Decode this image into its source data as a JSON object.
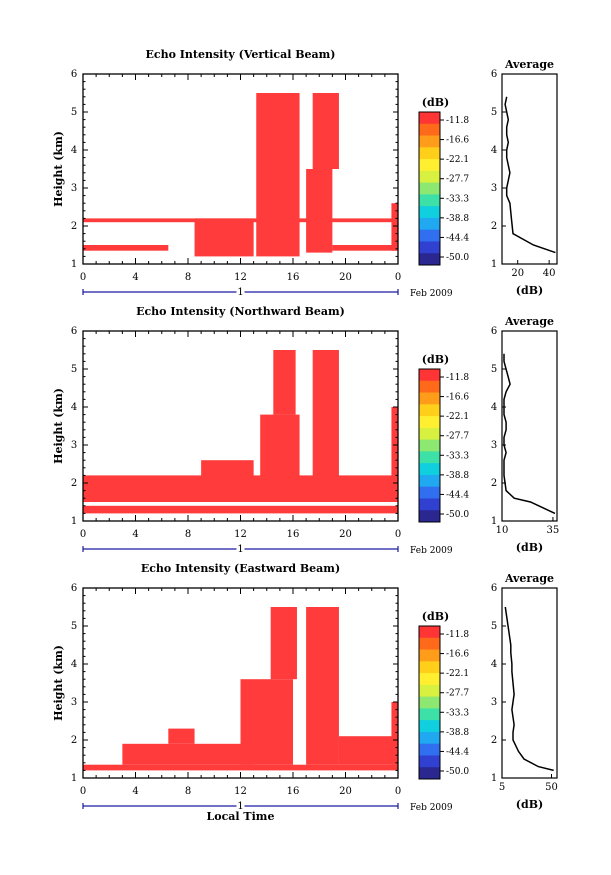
{
  "chart_data": [
    {
      "type": "heatmap",
      "title": "Echo Intensity (Vertical Beam)",
      "ylabel": "Height (km)",
      "ylim": [
        1,
        6
      ],
      "yticks": [
        "1",
        "2",
        "3",
        "4",
        "5",
        "6"
      ],
      "xlim": [
        0,
        24
      ],
      "xticks": [
        "0",
        "4",
        "8",
        "12",
        "16",
        "20",
        "0"
      ],
      "day_label": "1",
      "date_label": "Feb 2009",
      "colorbar": {
        "title": "(dB)",
        "ticks": [
          "-11.8",
          "-16.6",
          "-22.1",
          "-27.7",
          "-33.3",
          "-38.8",
          "-44.4",
          "-50.0"
        ]
      },
      "echo_segments": [
        {
          "x0": 0,
          "x1": 24,
          "y0": 2.1,
          "y1": 2.2
        },
        {
          "x0": 0,
          "x1": 6.5,
          "y0": 1.35,
          "y1": 1.5
        },
        {
          "x0": 8.5,
          "x1": 13,
          "y0": 1.2,
          "y1": 2.2
        },
        {
          "x0": 13.2,
          "x1": 16.5,
          "y0": 1.2,
          "y1": 5.5
        },
        {
          "x0": 17,
          "x1": 19,
          "y0": 1.3,
          "y1": 3.5
        },
        {
          "x0": 17.5,
          "x1": 19.5,
          "y0": 3.5,
          "y1": 5.5
        },
        {
          "x0": 19,
          "x1": 24,
          "y0": 1.35,
          "y1": 1.5
        },
        {
          "x0": 23.5,
          "x1": 24,
          "y0": 1.35,
          "y1": 2.6
        }
      ],
      "profile": {
        "title": "Average",
        "xlabel": "(dB)",
        "xlim": [
          10,
          45
        ],
        "xticks": [
          "20",
          "40"
        ],
        "x": [
          13,
          12,
          13,
          14,
          13,
          13,
          14,
          13,
          13,
          14,
          15,
          14,
          13,
          13,
          15,
          16,
          17,
          30,
          44
        ],
        "y": [
          5.4,
          5.2,
          5.0,
          4.8,
          4.6,
          4.4,
          4.2,
          4.0,
          3.8,
          3.6,
          3.4,
          3.2,
          3.0,
          2.8,
          2.6,
          2.2,
          1.8,
          1.5,
          1.3
        ]
      }
    },
    {
      "type": "heatmap",
      "title": "Echo Intensity (Northward Beam)",
      "ylabel": "Height (km)",
      "ylim": [
        1,
        6
      ],
      "yticks": [
        "1",
        "2",
        "3",
        "4",
        "5",
        "6"
      ],
      "xlim": [
        0,
        24
      ],
      "xticks": [
        "0",
        "4",
        "8",
        "12",
        "16",
        "20",
        "0"
      ],
      "day_label": "1",
      "date_label": "Feb 2009",
      "colorbar": {
        "title": "(dB)",
        "ticks": [
          "-11.8",
          "-16.6",
          "-22.1",
          "-27.7",
          "-33.3",
          "-38.8",
          "-44.4",
          "-50.0"
        ]
      },
      "echo_segments": [
        {
          "x0": 0,
          "x1": 24,
          "y0": 1.2,
          "y1": 1.4
        },
        {
          "x0": 0,
          "x1": 24,
          "y0": 1.5,
          "y1": 2.2
        },
        {
          "x0": 9,
          "x1": 13,
          "y0": 1.5,
          "y1": 2.6
        },
        {
          "x0": 13.5,
          "x1": 16.5,
          "y0": 1.5,
          "y1": 3.8
        },
        {
          "x0": 14.5,
          "x1": 16.2,
          "y0": 3.8,
          "y1": 5.5
        },
        {
          "x0": 17.5,
          "x1": 19.5,
          "y0": 1.5,
          "y1": 5.5
        },
        {
          "x0": 23.5,
          "x1": 24,
          "y0": 1.5,
          "y1": 4.0
        }
      ],
      "profile": {
        "title": "Average",
        "xlabel": "(dB)",
        "xlim": [
          10,
          37
        ],
        "xticks": [
          "10",
          "35"
        ],
        "x": [
          11,
          11,
          13,
          14,
          12,
          11,
          11,
          11,
          12,
          12,
          11,
          11,
          12,
          11,
          11,
          12,
          16,
          24,
          36
        ],
        "y": [
          5.4,
          5.2,
          4.8,
          4.6,
          4.4,
          4.2,
          4.0,
          3.8,
          3.6,
          3.4,
          3.2,
          3.0,
          2.8,
          2.6,
          2.2,
          1.8,
          1.6,
          1.5,
          1.2
        ]
      }
    },
    {
      "type": "heatmap",
      "title": "Echo Intensity (Eastward Beam)",
      "ylabel": "Height (km)",
      "xlabel": "Local Time",
      "ylim": [
        1,
        6
      ],
      "yticks": [
        "1",
        "2",
        "3",
        "4",
        "5",
        "6"
      ],
      "xlim": [
        0,
        24
      ],
      "xticks": [
        "0",
        "4",
        "8",
        "12",
        "16",
        "20",
        "0"
      ],
      "day_label": "1",
      "date_label": "Feb 2009",
      "colorbar": {
        "title": "(dB)",
        "ticks": [
          "-11.8",
          "-16.6",
          "-22.1",
          "-27.7",
          "-33.3",
          "-38.8",
          "-44.4",
          "-50.0"
        ]
      },
      "echo_segments": [
        {
          "x0": 0,
          "x1": 24,
          "y0": 1.2,
          "y1": 1.35
        },
        {
          "x0": 3,
          "x1": 13,
          "y0": 1.35,
          "y1": 1.9
        },
        {
          "x0": 6.5,
          "x1": 8.5,
          "y0": 1.9,
          "y1": 2.3
        },
        {
          "x0": 12,
          "x1": 16,
          "y0": 1.35,
          "y1": 3.6
        },
        {
          "x0": 14.3,
          "x1": 16.3,
          "y0": 3.6,
          "y1": 5.5
        },
        {
          "x0": 17,
          "x1": 19.5,
          "y0": 1.35,
          "y1": 5.5
        },
        {
          "x0": 19.5,
          "x1": 24,
          "y0": 1.35,
          "y1": 2.1
        },
        {
          "x0": 23.5,
          "x1": 24,
          "y0": 1.35,
          "y1": 3.0
        }
      ],
      "profile": {
        "title": "Average",
        "xlabel": "(dB)",
        "xlim": [
          5,
          55
        ],
        "xticks": [
          "5",
          "50"
        ],
        "x": [
          8,
          9,
          10,
          11,
          12,
          13,
          13,
          14,
          14,
          15,
          16,
          15,
          14,
          15,
          16,
          15,
          15,
          20,
          25,
          38,
          52
        ],
        "y": [
          5.5,
          5.3,
          5.1,
          4.9,
          4.7,
          4.5,
          4.3,
          4.0,
          3.8,
          3.5,
          3.2,
          3.0,
          2.8,
          2.6,
          2.4,
          2.2,
          2.0,
          1.7,
          1.5,
          1.3,
          1.2
        ]
      }
    }
  ],
  "colors": {
    "echo": "#ff3b3b",
    "axis": "#000000",
    "timebar": "#1a1aa0"
  },
  "colorbar_colors": [
    "#ff3535",
    "#ff6a1a",
    "#ff9d1a",
    "#ffcf1a",
    "#ffef30",
    "#d8f040",
    "#8ce870",
    "#3de0a6",
    "#10d0e0",
    "#20a8f0",
    "#3070f0",
    "#3040d0",
    "#2a2890"
  ]
}
